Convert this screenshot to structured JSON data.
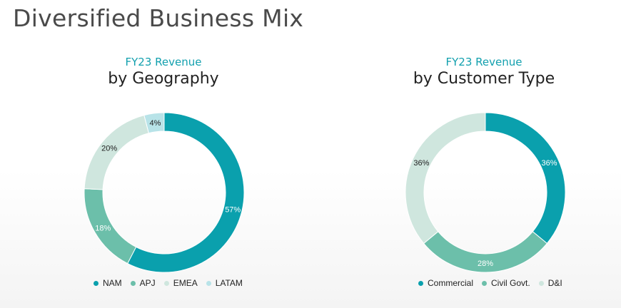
{
  "title": "Diversified Business Mix",
  "colors": {
    "teal": "#0aa0ad",
    "green": "#6cbfaa",
    "light": "#cfe6de",
    "pale": "#b8e3e8"
  },
  "chart_data": [
    {
      "type": "pie",
      "subtitle": "FY23 Revenue",
      "title": "by Geography",
      "categories": [
        "NAM",
        "APJ",
        "EMEA",
        "LATAM"
      ],
      "values": [
        57,
        18,
        20,
        4
      ],
      "labels": [
        "57%",
        "18%",
        "20%",
        "4%"
      ],
      "colors": [
        "#0aa0ad",
        "#6cbfaa",
        "#cfe6de",
        "#b8e3e8"
      ],
      "legend": "bottom"
    },
    {
      "type": "pie",
      "subtitle": "FY23 Revenue",
      "title": "by Customer Type",
      "categories": [
        "Commercial",
        "Civil Govt.",
        "D&I"
      ],
      "values": [
        36,
        28,
        36
      ],
      "labels": [
        "36%",
        "28%",
        "36%"
      ],
      "colors": [
        "#0aa0ad",
        "#6cbfaa",
        "#cfe6de"
      ],
      "legend": "bottom"
    }
  ]
}
